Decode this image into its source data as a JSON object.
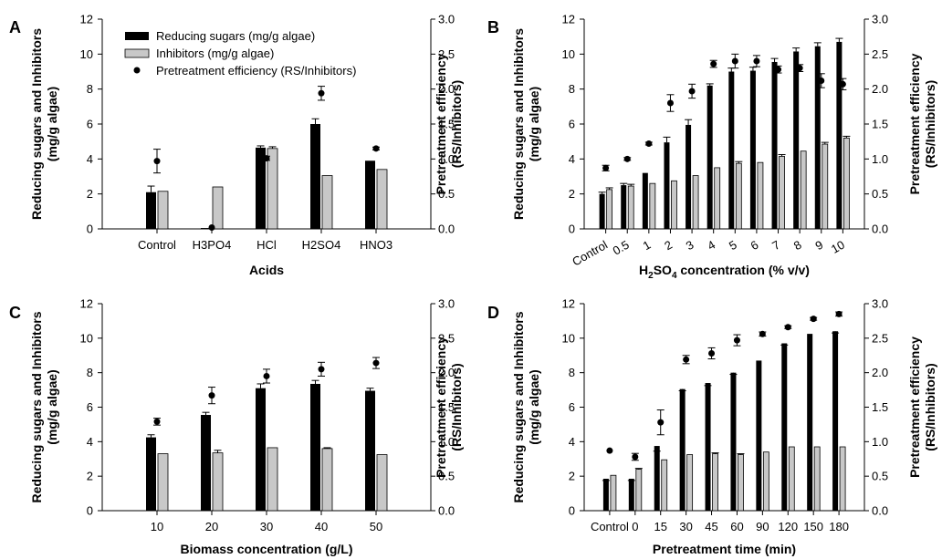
{
  "legend": {
    "reducing_sugars": "Reducing sugars (mg/g algae)",
    "inhibitors": "Inhibitors (mg/g algae)",
    "efficiency": "Pretreatment efficiency (RS/Inhibitors)"
  },
  "colors": {
    "rs": "#000000",
    "inh": "#c8c8c8",
    "eff": "#000000"
  },
  "chart_data": [
    {
      "panel": "A",
      "type": "bar",
      "xlabel": "Acids",
      "ylabel": "Reducing sugars and Inhibitors (mg/g algae)",
      "y2label": "Pretreatment efficiency (RS/Inhibitors)",
      "ylim": [
        0,
        12
      ],
      "y2lim": [
        0,
        3.0
      ],
      "yticks": [
        "0",
        "2",
        "4",
        "6",
        "8",
        "10",
        "12"
      ],
      "y2ticks": [
        "0.0",
        "0.5",
        "1.0",
        "1.5",
        "2.0",
        "2.5",
        "3.0"
      ],
      "categories": [
        "Control",
        "H3PO4",
        "HCl",
        "H2SO4",
        "HNO3"
      ],
      "tick_rotate": false,
      "legend": "top-left",
      "series": [
        {
          "name": "Reducing sugars (mg/g algae)",
          "values": [
            2.1,
            0.05,
            4.65,
            6.0,
            3.9
          ],
          "errors": [
            0.35,
            0.0,
            0.1,
            0.3,
            0.0
          ]
        },
        {
          "name": "Inhibitors (mg/g algae)",
          "values": [
            2.15,
            2.4,
            4.6,
            3.05,
            3.4
          ],
          "errors": [
            0.0,
            0.0,
            0.1,
            0.0,
            0.0
          ]
        },
        {
          "name": "Pretreatment efficiency (RS/Inhibitors)",
          "values": [
            0.97,
            0.02,
            1.01,
            1.94,
            1.15
          ],
          "errors": [
            0.17,
            0.0,
            0.03,
            0.1,
            0.02
          ]
        }
      ]
    },
    {
      "panel": "B",
      "type": "bar",
      "xlabel_parts": [
        "H",
        "2",
        "SO",
        "4",
        " concentration (% v/v)"
      ],
      "ylabel": "Reducing sugars and Inhibitors (mg/g algae)",
      "y2label": "Pretreatment efficiency (RS/Inhibitors)",
      "ylim": [
        0,
        12
      ],
      "y2lim": [
        0,
        3.0
      ],
      "yticks": [
        "0",
        "2",
        "4",
        "6",
        "8",
        "10",
        "12"
      ],
      "y2ticks": [
        "0.0",
        "0.5",
        "1.0",
        "1.5",
        "2.0",
        "2.5",
        "3.0"
      ],
      "categories": [
        "Control",
        "0.5",
        "1",
        "2",
        "3",
        "4",
        "5",
        "6",
        "7",
        "8",
        "9",
        "10"
      ],
      "tick_rotate": true,
      "series": [
        {
          "name": "Reducing sugars",
          "values": [
            2.0,
            2.5,
            3.2,
            4.95,
            5.95,
            8.2,
            9.0,
            9.05,
            9.55,
            10.15,
            10.45,
            10.7
          ],
          "errors": [
            0.1,
            0.1,
            0.0,
            0.3,
            0.3,
            0.1,
            0.2,
            0.2,
            0.2,
            0.2,
            0.2,
            0.2
          ]
        },
        {
          "name": "Inhibitors",
          "values": [
            2.25,
            2.45,
            2.6,
            2.75,
            3.05,
            3.5,
            3.75,
            3.8,
            4.15,
            4.45,
            4.85,
            5.2
          ],
          "errors": [
            0.1,
            0.1,
            0.0,
            0.0,
            0.0,
            0.0,
            0.1,
            0.0,
            0.1,
            0.0,
            0.1,
            0.1
          ]
        },
        {
          "name": "Pretreatment efficiency",
          "values": [
            0.87,
            1.0,
            1.22,
            1.8,
            1.97,
            2.36,
            2.4,
            2.4,
            2.28,
            2.3,
            2.12,
            2.07
          ],
          "errors": [
            0.04,
            0.02,
            0.02,
            0.12,
            0.1,
            0.05,
            0.1,
            0.08,
            0.05,
            0.05,
            0.1,
            0.08
          ]
        }
      ]
    },
    {
      "panel": "C",
      "type": "bar",
      "xlabel": "Biomass concentration (g/L)",
      "ylabel": "Reducing sugars and Inhibitors (mg/g algae)",
      "y2label": "Pretreatment efficiency (RS/Inhibitors)",
      "ylim": [
        0,
        12
      ],
      "y2lim": [
        0,
        3.0
      ],
      "yticks": [
        "0",
        "2",
        "4",
        "6",
        "8",
        "10",
        "12"
      ],
      "y2ticks": [
        "0.0",
        "0.5",
        "1.0",
        "1.5",
        "2.0",
        "2.5",
        "3.0"
      ],
      "categories": [
        "10",
        "20",
        "30",
        "40",
        "50"
      ],
      "tick_rotate": false,
      "series": [
        {
          "name": "Reducing sugars",
          "values": [
            4.25,
            5.55,
            7.1,
            7.35,
            6.95
          ],
          "errors": [
            0.15,
            0.15,
            0.25,
            0.2,
            0.15
          ]
        },
        {
          "name": "Inhibitors",
          "values": [
            3.3,
            3.35,
            3.65,
            3.6,
            3.25
          ],
          "errors": [
            0.0,
            0.15,
            0.0,
            0.05,
            0.0
          ]
        },
        {
          "name": "Pretreatment efficiency",
          "values": [
            1.29,
            1.67,
            1.95,
            2.05,
            2.14
          ],
          "errors": [
            0.05,
            0.12,
            0.1,
            0.1,
            0.08
          ]
        }
      ]
    },
    {
      "panel": "D",
      "type": "bar",
      "xlabel": "Pretreatment time (min)",
      "ylabel": "Reducing sugars and Inhibitors (mg/g algae)",
      "y2label": "Pretreatment efficiency (RS/Inhibitors)",
      "ylim": [
        0,
        12
      ],
      "y2lim": [
        0,
        3.0
      ],
      "yticks": [
        "0",
        "2",
        "4",
        "6",
        "8",
        "10",
        "12"
      ],
      "y2ticks": [
        "0.0",
        "0.5",
        "1.0",
        "1.5",
        "2.0",
        "2.5",
        "3.0"
      ],
      "categories": [
        "Control",
        "0",
        "15",
        "30",
        "45",
        "60",
        "90",
        "120",
        "150",
        "180"
      ],
      "tick_rotate": false,
      "series": [
        {
          "name": "Reducing sugars",
          "values": [
            1.85,
            1.85,
            3.75,
            7.05,
            7.4,
            8.0,
            8.7,
            9.7,
            10.25,
            10.4
          ],
          "errors": [
            0.1,
            0.1,
            0.3,
            0.1,
            0.15,
            0.1,
            0.0,
            0.1,
            0.0,
            0.1
          ],
          "error_dir": "down"
        },
        {
          "name": "Inhibitors",
          "values": [
            2.05,
            2.4,
            2.95,
            3.25,
            3.3,
            3.25,
            3.4,
            3.7,
            3.7,
            3.7
          ],
          "errors": [
            0.0,
            0.05,
            0.0,
            0.0,
            0.05,
            0.05,
            0.0,
            0.0,
            0.0,
            0.0
          ],
          "error_dir": "up"
        },
        {
          "name": "Pretreatment efficiency",
          "values": [
            0.87,
            0.78,
            1.28,
            2.19,
            2.28,
            2.47,
            2.56,
            2.66,
            2.78,
            2.85
          ],
          "errors": [
            0.0,
            0.05,
            0.18,
            0.06,
            0.08,
            0.08,
            0.03,
            0.02,
            0.02,
            0.03
          ]
        }
      ]
    }
  ]
}
